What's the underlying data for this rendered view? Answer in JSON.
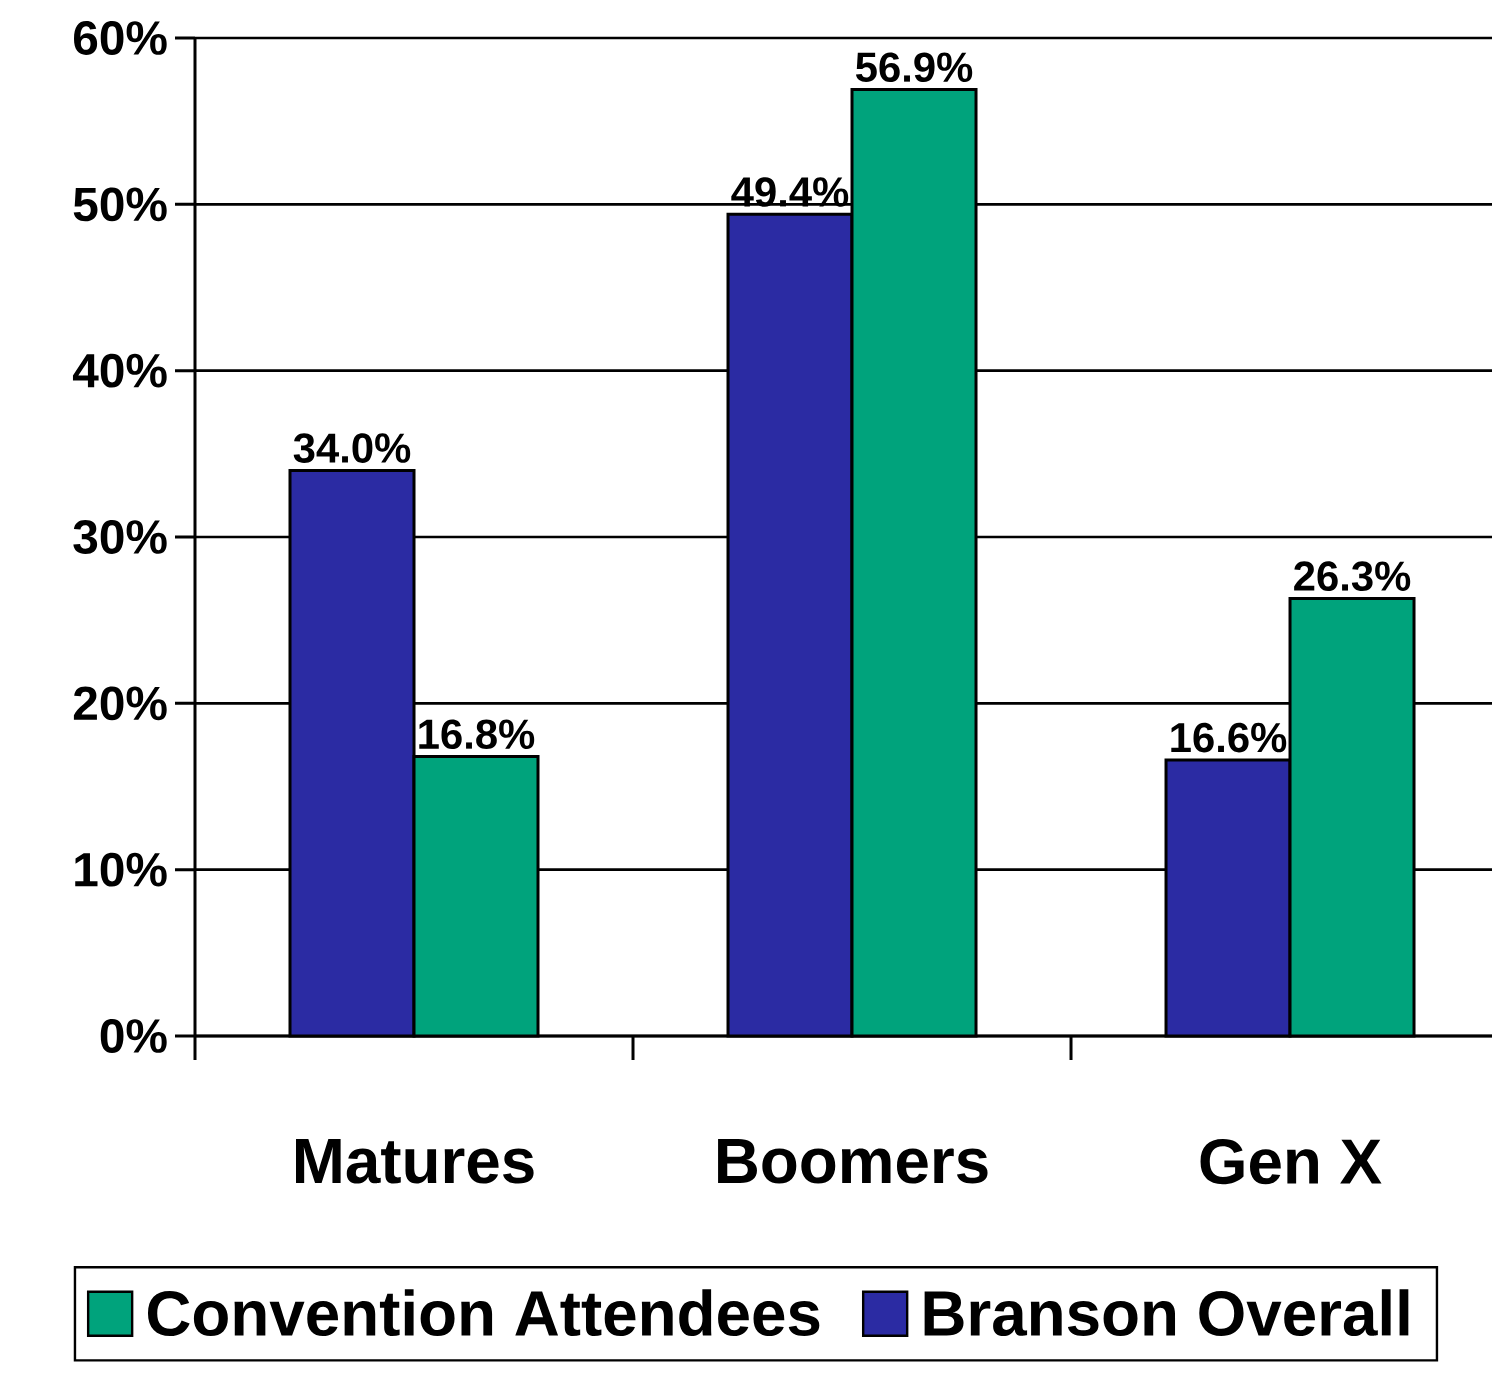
{
  "chart_data": {
    "type": "bar",
    "categories": [
      "Matures",
      "Boomers",
      "Gen X"
    ],
    "series": [
      {
        "name": "Branson Overall",
        "color": "#2b2ba3",
        "values": [
          34.0,
          49.4,
          16.6
        ],
        "value_labels": [
          "34.0%",
          "49.4%",
          "16.6%"
        ]
      },
      {
        "name": "Convention Attendees",
        "color": "#00a37c",
        "values": [
          16.8,
          56.9,
          26.3
        ],
        "value_labels": [
          "16.8%",
          "56.9%",
          "26.3%"
        ]
      }
    ],
    "ylim": [
      0,
      60
    ],
    "yticks": [
      {
        "value": 0,
        "label": "0%"
      },
      {
        "value": 10,
        "label": "10%"
      },
      {
        "value": 20,
        "label": "20%"
      },
      {
        "value": 30,
        "label": "30%"
      },
      {
        "value": 40,
        "label": "40%"
      },
      {
        "value": 50,
        "label": "50%"
      },
      {
        "value": 60,
        "label": "60%"
      }
    ],
    "grid": "y",
    "legend": "bottom"
  }
}
